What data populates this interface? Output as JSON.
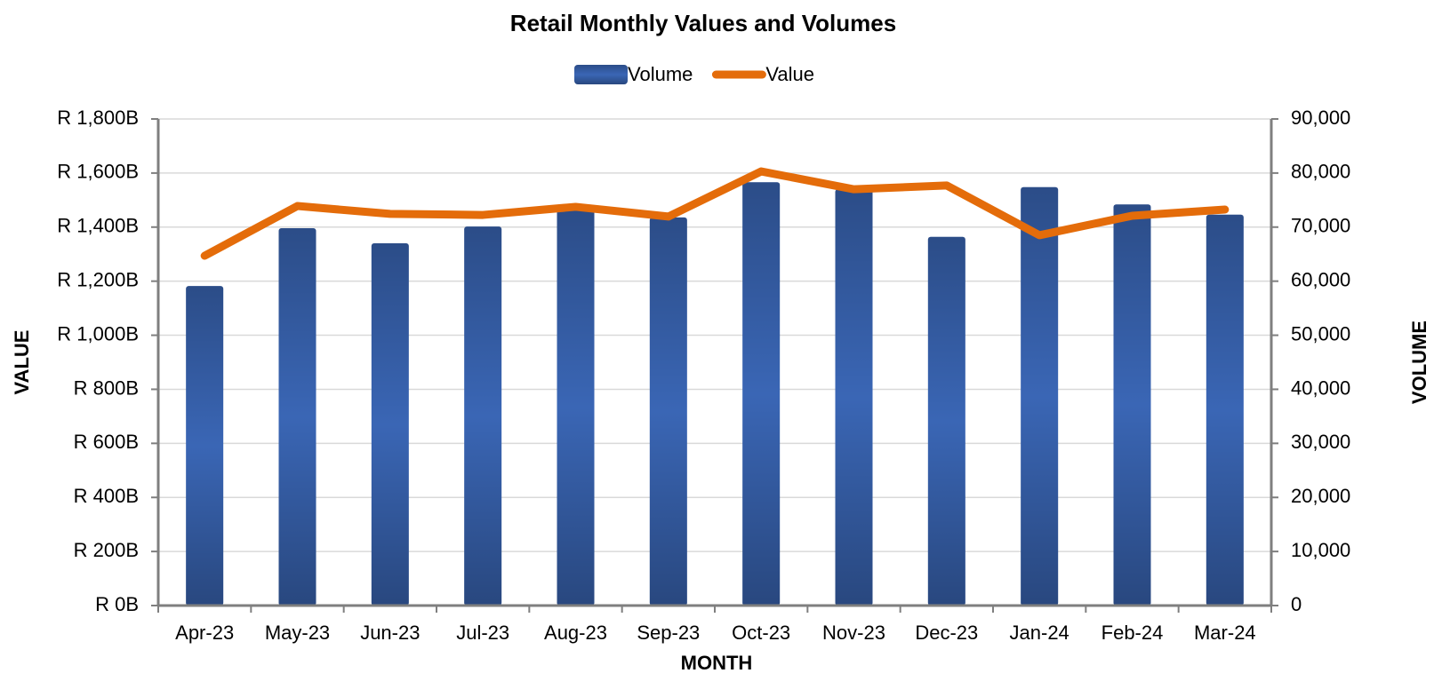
{
  "chart_data": {
    "type": "bar_line",
    "title": "Retail Monthly Values and Volumes",
    "x_label": "MONTH",
    "y_label": "VALUE",
    "y2_label": "VOLUME",
    "categories": [
      "Apr-23",
      "May-23",
      "Jun-23",
      "Jul-23",
      "Aug-23",
      "Sep-23",
      "Oct-23",
      "Nov-23",
      "Dec-23",
      "Jan-24",
      "Feb-24",
      "Mar-24"
    ],
    "series": [
      {
        "name": "Volume",
        "type": "bar",
        "axis": "y2",
        "color": "#3a66b5",
        "values": [
          59100,
          69800,
          67000,
          70100,
          73200,
          71800,
          78300,
          77000,
          68200,
          77400,
          74200,
          72300
        ]
      },
      {
        "name": "Value",
        "type": "line",
        "color": "#e46c0a",
        "values": [
          1294,
          1478,
          1449,
          1445,
          1475,
          1439,
          1606,
          1540,
          1554,
          1370,
          1442,
          1465
        ]
      }
    ],
    "ylim": [
      0,
      1800
    ],
    "yticks": [
      {
        "value": 0,
        "label": "R 0B"
      },
      {
        "value": 200,
        "label": "R 200B"
      },
      {
        "value": 400,
        "label": "R 400B"
      },
      {
        "value": 600,
        "label": "R 600B"
      },
      {
        "value": 800,
        "label": "R 800B"
      },
      {
        "value": 1000,
        "label": "R 1,000B"
      },
      {
        "value": 1200,
        "label": "R 1,200B"
      },
      {
        "value": 1400,
        "label": "R 1,400B"
      },
      {
        "value": 1600,
        "label": "R 1,600B"
      },
      {
        "value": 1800,
        "label": "R 1,800B"
      }
    ],
    "y2lim": [
      0,
      90000
    ],
    "y2ticks": [
      0,
      {
        "value": 10000,
        "label": "10,000"
      },
      {
        "value": 20000,
        "label": "20,000"
      },
      {
        "value": 30000,
        "label": "30,000"
      },
      {
        "value": 40000,
        "label": "40,000"
      },
      {
        "value": 50000,
        "label": "50,000"
      },
      {
        "value": 60000,
        "label": "60,000"
      },
      {
        "value": 70000,
        "label": "70,000"
      },
      {
        "value": 80000,
        "label": "80,000"
      },
      {
        "value": 90000,
        "label": "90,000"
      }
    ],
    "grid": true,
    "legend": "top"
  }
}
